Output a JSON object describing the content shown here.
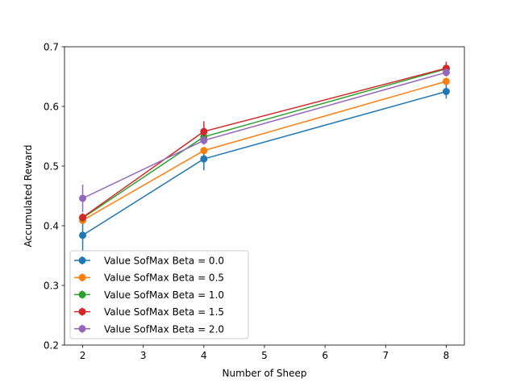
{
  "chart_data": {
    "type": "line",
    "title": "",
    "xlabel": "Number of Sheep",
    "ylabel": "Accumulated Reward",
    "x": [
      2,
      4,
      8
    ],
    "xlim": [
      1.7,
      8.3
    ],
    "ylim": [
      0.2,
      0.7
    ],
    "xticks": [
      2,
      3,
      4,
      5,
      6,
      7,
      8
    ],
    "yticks": [
      0.2,
      0.3,
      0.4,
      0.5,
      0.6,
      0.7
    ],
    "grid": false,
    "legend_position": "lower-left",
    "series": [
      {
        "name": "Value SofMax Beta = 0.0",
        "color": "#1f77b4",
        "values": [
          0.384,
          0.512,
          0.625
        ],
        "errors": [
          0.026,
          0.019,
          0.012
        ]
      },
      {
        "name": "Value SofMax Beta = 0.5",
        "color": "#ff7f0e",
        "values": [
          0.409,
          0.526,
          0.642
        ],
        "errors": [
          0.005,
          0.005,
          0.005
        ]
      },
      {
        "name": "Value SofMax Beta = 1.0",
        "color": "#2ca02c",
        "values": [
          0.413,
          0.549,
          0.663
        ],
        "errors": [
          0.005,
          0.005,
          0.005
        ]
      },
      {
        "name": "Value SofMax Beta = 1.5",
        "color": "#d62728",
        "values": [
          0.414,
          0.558,
          0.664
        ],
        "errors": [
          0.007,
          0.017,
          0.011
        ]
      },
      {
        "name": "Value SofMax Beta = 2.0",
        "color": "#9467bd",
        "values": [
          0.446,
          0.543,
          0.657
        ],
        "errors": [
          0.023,
          0.007,
          0.007
        ]
      }
    ]
  }
}
